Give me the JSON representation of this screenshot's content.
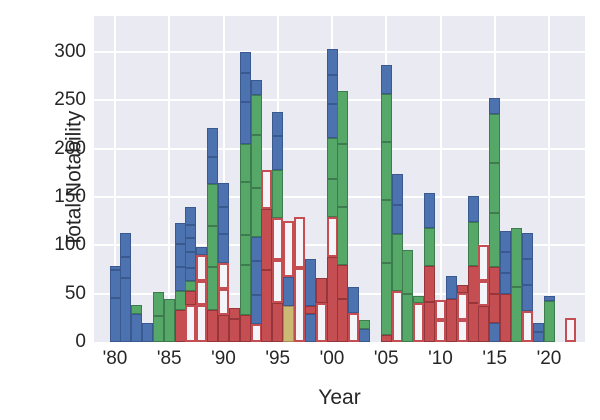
{
  "chart_data": {
    "type": "bar",
    "stacked": true,
    "title": "",
    "xlabel": "Year",
    "ylabel": "Total Notability",
    "legend": "none",
    "grid": true,
    "x_tick_labels": [
      "'80",
      "'85",
      "'90",
      "'95",
      "'00",
      "'05",
      "'10",
      "'15",
      "'20"
    ],
    "x_tick_years": [
      1980,
      1985,
      1990,
      1995,
      2000,
      2005,
      2010,
      2015,
      2020
    ],
    "y_ticks": [
      0,
      50,
      100,
      150,
      200,
      250,
      300
    ],
    "ylim": [
      0,
      337
    ],
    "xlim_years": [
      1978.1,
      2024.3
    ],
    "palette": {
      "B": "#4c72b0",
      "G": "#55a868",
      "R": "#c44e52",
      "W": "#f5f5f9",
      "T": "#ccb974"
    },
    "edge_colors": {
      "B": "#3a5a8f",
      "G": "#3e7c4f",
      "R": "#96353a",
      "W": "#c44e52",
      "T": "#a39154"
    },
    "color_meaning": {
      "B": "blue-filled",
      "G": "green-filled",
      "R": "red-filled",
      "W": "white-red-outline",
      "T": "tan-filled"
    },
    "bars": [
      {
        "year": 1980,
        "total": 79,
        "segments": [
          [
            "B",
            46
          ],
          [
            "B",
            29
          ],
          [
            "B",
            4
          ]
        ]
      },
      {
        "year": 1981,
        "total": 113,
        "segments": [
          [
            "B",
            66
          ],
          [
            "B",
            22
          ],
          [
            "B",
            25
          ]
        ]
      },
      {
        "year": 1982,
        "total": 38,
        "segments": [
          [
            "B",
            29
          ],
          [
            "G",
            9
          ]
        ]
      },
      {
        "year": 1983,
        "total": 20,
        "segments": [
          [
            "B",
            20
          ]
        ]
      },
      {
        "year": 1984,
        "total": 52,
        "segments": [
          [
            "G",
            27
          ],
          [
            "G",
            25
          ]
        ]
      },
      {
        "year": 1985,
        "total": 44,
        "segments": [
          [
            "G",
            44
          ]
        ]
      },
      {
        "year": 1986,
        "total": 123,
        "segments": [
          [
            "R",
            33
          ],
          [
            "G",
            20
          ],
          [
            "B",
            25
          ],
          [
            "B",
            23
          ],
          [
            "B",
            22
          ]
        ]
      },
      {
        "year": 1987,
        "total": 140,
        "segments": [
          [
            "W",
            38
          ],
          [
            "R",
            15
          ],
          [
            "G",
            10
          ],
          [
            "B",
            14
          ],
          [
            "B",
            16
          ],
          [
            "B",
            15
          ],
          [
            "B",
            13
          ],
          [
            "B",
            19
          ]
        ]
      },
      {
        "year": 1988,
        "total": 98,
        "segments": [
          [
            "W",
            38
          ],
          [
            "W",
            25
          ],
          [
            "W",
            27
          ],
          [
            "B",
            8
          ]
        ]
      },
      {
        "year": 1989,
        "total": 221,
        "segments": [
          [
            "R",
            33
          ],
          [
            "G",
            45
          ],
          [
            "G",
            42
          ],
          [
            "G",
            43
          ],
          [
            "B",
            28
          ],
          [
            "B",
            30
          ]
        ]
      },
      {
        "year": 1990,
        "total": 164,
        "segments": [
          [
            "R",
            28
          ],
          [
            "W",
            27
          ],
          [
            "W",
            27
          ],
          [
            "B",
            30
          ],
          [
            "B",
            28
          ],
          [
            "B",
            24
          ]
        ]
      },
      {
        "year": 1991,
        "total": 35,
        "segments": [
          [
            "R",
            24
          ],
          [
            "R",
            11
          ]
        ]
      },
      {
        "year": 1992,
        "total": 300,
        "segments": [
          [
            "R",
            28
          ],
          [
            "G",
            52
          ],
          [
            "G",
            31
          ],
          [
            "G",
            54
          ],
          [
            "G",
            40
          ],
          [
            "B",
            43
          ],
          [
            "B",
            30
          ],
          [
            "B",
            22
          ]
        ]
      },
      {
        "year": 1993,
        "total": 271,
        "segments": [
          [
            "W",
            19
          ],
          [
            "B",
            30
          ],
          [
            "B",
            35
          ],
          [
            "B",
            25
          ],
          [
            "G",
            50
          ],
          [
            "G",
            55
          ],
          [
            "G",
            41
          ],
          [
            "B",
            16
          ]
        ]
      },
      {
        "year": 1994,
        "total": 178,
        "segments": [
          [
            "R",
            74
          ],
          [
            "R",
            64
          ],
          [
            "W",
            40
          ]
        ]
      },
      {
        "year": 1995,
        "total": 238,
        "segments": [
          [
            "R",
            40
          ],
          [
            "W",
            45
          ],
          [
            "W",
            43
          ],
          [
            "G",
            50
          ],
          [
            "B",
            35
          ],
          [
            "B",
            25
          ]
        ]
      },
      {
        "year": 1996,
        "total": 125,
        "segments": [
          [
            "T",
            37
          ],
          [
            "B",
            30
          ],
          [
            "W",
            58
          ]
        ]
      },
      {
        "year": 1997,
        "total": 129,
        "segments": [
          [
            "W",
            77
          ],
          [
            "W",
            52
          ]
        ]
      },
      {
        "year": 1998,
        "total": 86,
        "segments": [
          [
            "B",
            29
          ],
          [
            "R",
            8
          ],
          [
            "B",
            49
          ]
        ]
      },
      {
        "year": 1999,
        "total": 66,
        "segments": [
          [
            "W",
            40
          ],
          [
            "R",
            26
          ]
        ]
      },
      {
        "year": 2000,
        "total": 303,
        "segments": [
          [
            "R",
            88
          ],
          [
            "W",
            41
          ],
          [
            "G",
            40
          ],
          [
            "G",
            42
          ],
          [
            "B",
            35
          ],
          [
            "B",
            30
          ],
          [
            "B",
            27
          ]
        ]
      },
      {
        "year": 2001,
        "total": 260,
        "segments": [
          [
            "R",
            45
          ],
          [
            "R",
            35
          ],
          [
            "G",
            60
          ],
          [
            "G",
            65
          ],
          [
            "G",
            55
          ]
        ]
      },
      {
        "year": 2002,
        "total": 57,
        "segments": [
          [
            "W",
            30
          ],
          [
            "B",
            27
          ]
        ]
      },
      {
        "year": 2003,
        "total": 23,
        "segments": [
          [
            "B",
            13
          ],
          [
            "G",
            10
          ]
        ]
      },
      {
        "year": 2004,
        "total": 0,
        "segments": []
      },
      {
        "year": 2005,
        "total": 286,
        "segments": [
          [
            "R",
            7
          ],
          [
            "G",
            75
          ],
          [
            "G",
            65
          ],
          [
            "G",
            60
          ],
          [
            "G",
            50
          ],
          [
            "B",
            29
          ]
        ]
      },
      {
        "year": 2006,
        "total": 174,
        "segments": [
          [
            "W",
            53
          ],
          [
            "G",
            59
          ],
          [
            "B",
            30
          ],
          [
            "B",
            32
          ]
        ]
      },
      {
        "year": 2007,
        "total": 95,
        "segments": [
          [
            "G",
            50
          ],
          [
            "G",
            45
          ]
        ]
      },
      {
        "year": 2008,
        "total": 48,
        "segments": [
          [
            "W",
            40
          ],
          [
            "G",
            8
          ]
        ]
      },
      {
        "year": 2009,
        "total": 154,
        "segments": [
          [
            "R",
            41
          ],
          [
            "R",
            38
          ],
          [
            "G",
            39
          ],
          [
            "B",
            36
          ]
        ]
      },
      {
        "year": 2010,
        "total": 43,
        "segments": [
          [
            "W",
            23
          ],
          [
            "W",
            20
          ]
        ]
      },
      {
        "year": 2011,
        "total": 68,
        "segments": [
          [
            "R",
            45
          ],
          [
            "B",
            23
          ]
        ]
      },
      {
        "year": 2012,
        "total": 59,
        "segments": [
          [
            "W",
            23
          ],
          [
            "W",
            28
          ],
          [
            "R",
            8
          ]
        ]
      },
      {
        "year": 2013,
        "total": 151,
        "segments": [
          [
            "R",
            40
          ],
          [
            "R",
            39
          ],
          [
            "G",
            45
          ],
          [
            "B",
            27
          ]
        ]
      },
      {
        "year": 2014,
        "total": 100,
        "segments": [
          [
            "R",
            37
          ],
          [
            "W",
            26
          ],
          [
            "W",
            37
          ]
        ]
      },
      {
        "year": 2015,
        "total": 252,
        "segments": [
          [
            "B",
            20
          ],
          [
            "R",
            30
          ],
          [
            "R",
            28
          ],
          [
            "G",
            55
          ],
          [
            "G",
            52
          ],
          [
            "G",
            51
          ],
          [
            "B",
            16
          ]
        ]
      },
      {
        "year": 2016,
        "total": 115,
        "segments": [
          [
            "R",
            50
          ],
          [
            "B",
            21
          ],
          [
            "B",
            22
          ],
          [
            "B",
            22
          ]
        ]
      },
      {
        "year": 2017,
        "total": 118,
        "segments": [
          [
            "G",
            57
          ],
          [
            "G",
            61
          ]
        ]
      },
      {
        "year": 2018,
        "total": 113,
        "segments": [
          [
            "W",
            32
          ],
          [
            "B",
            27
          ],
          [
            "B",
            27
          ],
          [
            "B",
            27
          ]
        ]
      },
      {
        "year": 2019,
        "total": 20,
        "segments": [
          [
            "B",
            10
          ],
          [
            "B",
            10
          ]
        ]
      },
      {
        "year": 2020,
        "total": 48,
        "segments": [
          [
            "G",
            42
          ],
          [
            "B",
            6
          ]
        ]
      },
      {
        "year": 2021,
        "total": 0,
        "segments": []
      },
      {
        "year": 2022,
        "total": 25,
        "segments": [
          [
            "W",
            25
          ]
        ]
      }
    ]
  },
  "style_colors": {
    "plot_background": "#e9eaf2",
    "figure_background": "#ffffff",
    "gridline": "#ffffff",
    "text": "#262626"
  }
}
